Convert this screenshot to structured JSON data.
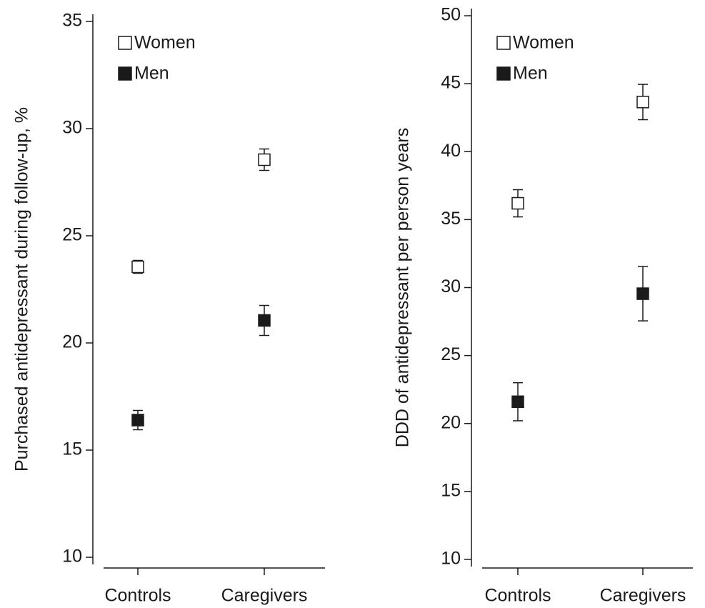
{
  "chart_data": [
    {
      "type": "errorbar",
      "ylabel": "Purchased antidepressant during follow-up, %",
      "categories": [
        "Controls",
        "Caregivers"
      ],
      "series": [
        {
          "name": "Women",
          "color": "#ffffff",
          "values": [
            23.55,
            28.55
          ],
          "errors": [
            0.3,
            0.5
          ]
        },
        {
          "name": "Men",
          "color": "#1a1a1a",
          "values": [
            16.4,
            21.05
          ],
          "errors": [
            0.45,
            0.7
          ]
        }
      ],
      "ylim": [
        10,
        35
      ],
      "yticks": [
        10,
        15,
        20,
        25,
        30,
        35
      ],
      "legend": "upper left"
    },
    {
      "type": "errorbar",
      "ylabel": "DDD of antidepressant per person years",
      "categories": [
        "Controls",
        "Caregivers"
      ],
      "series": [
        {
          "name": "Women",
          "color": "#ffffff",
          "values": [
            36.2,
            43.65
          ],
          "errors": [
            1.0,
            1.3
          ]
        },
        {
          "name": "Men",
          "color": "#1a1a1a",
          "values": [
            21.6,
            29.55
          ],
          "errors": [
            1.4,
            2.0
          ]
        }
      ],
      "ylim": [
        10,
        50
      ],
      "yticks": [
        10,
        15,
        20,
        25,
        30,
        35,
        40,
        45,
        50
      ],
      "legend": "upper left"
    }
  ]
}
